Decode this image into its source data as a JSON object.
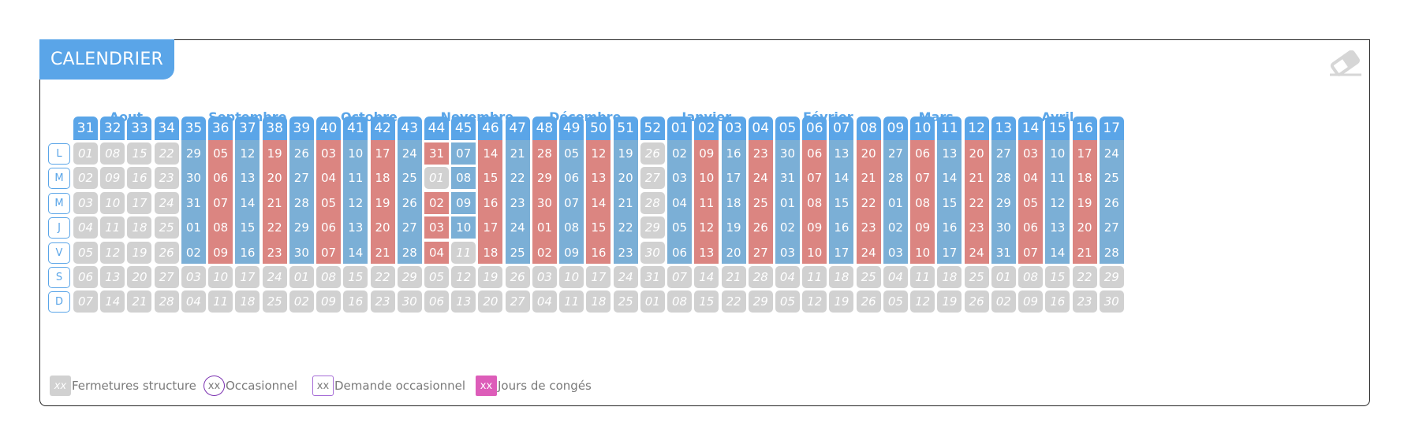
{
  "title": "CALENDRIER",
  "toolbar": {
    "eraser_icon": "eraser-icon"
  },
  "months": [
    "Aout",
    "Septembre",
    "Octobre",
    "Novembre",
    "Décembre",
    "Janvier",
    "Février",
    "Mars",
    "Avril"
  ],
  "days": [
    "L",
    "M",
    "M",
    "J",
    "V",
    "S",
    "D"
  ],
  "weeks": [
    {
      "wk": "31",
      "days": [
        "01",
        "02",
        "03",
        "04",
        "05",
        "06",
        "07"
      ],
      "st": "ggggggg"
    },
    {
      "wk": "32",
      "days": [
        "08",
        "09",
        "10",
        "11",
        "12",
        "13",
        "14"
      ],
      "st": "ggggggg"
    },
    {
      "wk": "33",
      "days": [
        "15",
        "16",
        "17",
        "18",
        "19",
        "20",
        "21"
      ],
      "st": "ggggggg"
    },
    {
      "wk": "34",
      "days": [
        "22",
        "23",
        "24",
        "25",
        "26",
        "27",
        "28"
      ],
      "st": "ggggggg"
    },
    {
      "wk": "35",
      "days": [
        "29",
        "30",
        "31",
        "01",
        "02",
        "03",
        "04"
      ],
      "st": "bbbbbgg"
    },
    {
      "wk": "36",
      "days": [
        "05",
        "06",
        "07",
        "08",
        "09",
        "10",
        "11"
      ],
      "st": "rrrrrgg"
    },
    {
      "wk": "37",
      "days": [
        "12",
        "13",
        "14",
        "15",
        "16",
        "17",
        "18"
      ],
      "st": "bbbbbgg"
    },
    {
      "wk": "38",
      "days": [
        "19",
        "20",
        "21",
        "22",
        "23",
        "24",
        "25"
      ],
      "st": "rrrrrgg"
    },
    {
      "wk": "39",
      "days": [
        "26",
        "27",
        "28",
        "29",
        "30",
        "01",
        "02"
      ],
      "st": "bbbbbgg"
    },
    {
      "wk": "40",
      "days": [
        "03",
        "04",
        "05",
        "06",
        "07",
        "08",
        "09"
      ],
      "st": "rrrrrgg"
    },
    {
      "wk": "41",
      "days": [
        "10",
        "11",
        "12",
        "13",
        "14",
        "15",
        "16"
      ],
      "st": "bbbbbgg"
    },
    {
      "wk": "42",
      "days": [
        "17",
        "18",
        "19",
        "20",
        "21",
        "22",
        "23"
      ],
      "st": "rrrrrgg"
    },
    {
      "wk": "43",
      "days": [
        "24",
        "25",
        "26",
        "27",
        "28",
        "29",
        "30"
      ],
      "st": "bbbbbgg"
    },
    {
      "wk": "44",
      "days": [
        "31",
        "01",
        "02",
        "03",
        "04",
        "05",
        "06"
      ],
      "st": "rgrrrgg"
    },
    {
      "wk": "45",
      "days": [
        "07",
        "08",
        "09",
        "10",
        "11",
        "12",
        "13"
      ],
      "st": "bbbbggg"
    },
    {
      "wk": "46",
      "days": [
        "14",
        "15",
        "16",
        "17",
        "18",
        "19",
        "20"
      ],
      "st": "rrrrrgg"
    },
    {
      "wk": "47",
      "days": [
        "21",
        "22",
        "23",
        "24",
        "25",
        "26",
        "27"
      ],
      "st": "bbbbbgg"
    },
    {
      "wk": "48",
      "days": [
        "28",
        "29",
        "30",
        "01",
        "02",
        "03",
        "04"
      ],
      "st": "rrrrrgg"
    },
    {
      "wk": "49",
      "days": [
        "05",
        "06",
        "07",
        "08",
        "09",
        "10",
        "11"
      ],
      "st": "bbbbbgg"
    },
    {
      "wk": "50",
      "days": [
        "12",
        "13",
        "14",
        "15",
        "16",
        "17",
        "18"
      ],
      "st": "rrrrrgg"
    },
    {
      "wk": "51",
      "days": [
        "19",
        "20",
        "21",
        "22",
        "23",
        "24",
        "25"
      ],
      "st": "bbbbbgg"
    },
    {
      "wk": "52",
      "days": [
        "26",
        "27",
        "28",
        "29",
        "30",
        "31",
        "01"
      ],
      "st": "ggggggg"
    },
    {
      "wk": "01",
      "days": [
        "02",
        "03",
        "04",
        "05",
        "06",
        "07",
        "08"
      ],
      "st": "bbbbbgg"
    },
    {
      "wk": "02",
      "days": [
        "09",
        "10",
        "11",
        "12",
        "13",
        "14",
        "15"
      ],
      "st": "rrrrrgg"
    },
    {
      "wk": "03",
      "days": [
        "16",
        "17",
        "18",
        "19",
        "20",
        "21",
        "22"
      ],
      "st": "bbbbbgg"
    },
    {
      "wk": "04",
      "days": [
        "23",
        "24",
        "25",
        "26",
        "27",
        "28",
        "29"
      ],
      "st": "rrrrrgg"
    },
    {
      "wk": "05",
      "days": [
        "30",
        "31",
        "01",
        "02",
        "03",
        "04",
        "05"
      ],
      "st": "bbbbbgg"
    },
    {
      "wk": "06",
      "days": [
        "06",
        "07",
        "08",
        "09",
        "10",
        "11",
        "12"
      ],
      "st": "rrrrrgg"
    },
    {
      "wk": "07",
      "days": [
        "13",
        "14",
        "15",
        "16",
        "17",
        "18",
        "19"
      ],
      "st": "bbbbbgg"
    },
    {
      "wk": "08",
      "days": [
        "20",
        "21",
        "22",
        "23",
        "24",
        "25",
        "26"
      ],
      "st": "rrrrrgg"
    },
    {
      "wk": "09",
      "days": [
        "27",
        "28",
        "01",
        "02",
        "03",
        "04",
        "05"
      ],
      "st": "bbbbbgg"
    },
    {
      "wk": "10",
      "days": [
        "06",
        "07",
        "08",
        "09",
        "10",
        "11",
        "12"
      ],
      "st": "rrrrrgg"
    },
    {
      "wk": "11",
      "days": [
        "13",
        "14",
        "15",
        "16",
        "17",
        "18",
        "19"
      ],
      "st": "bbbbbgg"
    },
    {
      "wk": "12",
      "days": [
        "20",
        "21",
        "22",
        "23",
        "24",
        "25",
        "26"
      ],
      "st": "rrrrrgg"
    },
    {
      "wk": "13",
      "days": [
        "27",
        "28",
        "29",
        "30",
        "31",
        "01",
        "02"
      ],
      "st": "bbbbbgg"
    },
    {
      "wk": "14",
      "days": [
        "03",
        "04",
        "05",
        "06",
        "07",
        "08",
        "09"
      ],
      "st": "rrrrrgg"
    },
    {
      "wk": "15",
      "days": [
        "10",
        "11",
        "12",
        "13",
        "14",
        "15",
        "16"
      ],
      "st": "bbbbbgg"
    },
    {
      "wk": "16",
      "days": [
        "17",
        "18",
        "19",
        "20",
        "21",
        "22",
        "23"
      ],
      "st": "rrrrrgg"
    },
    {
      "wk": "17",
      "days": [
        "24",
        "25",
        "26",
        "27",
        "28",
        "29",
        "30"
      ],
      "st": "bbbbbgg"
    }
  ],
  "legend": [
    {
      "swatch": "xx",
      "label": "Fermetures structure",
      "kind": "grey"
    },
    {
      "swatch": "xx",
      "label": "Occasionnel",
      "kind": "circle"
    },
    {
      "swatch": "xx",
      "label": "Demande occasionnel",
      "kind": "square"
    },
    {
      "swatch": "xx",
      "label": "Jours de congés",
      "kind": "pink"
    }
  ],
  "colors": {
    "header_blue": "#5aa5e8",
    "day_blue": "#7bafd6",
    "day_red": "#db8581",
    "closed_grey": "#d1d1d1",
    "leave_pink": "#dd5db9",
    "occasional": "#7a2fb0"
  }
}
